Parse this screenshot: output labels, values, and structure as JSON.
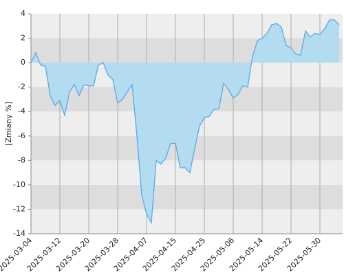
{
  "chart_data": {
    "type": "area",
    "y_label": "[Zmiany %]",
    "categories": [
      "2025-03-04",
      null,
      null,
      null,
      null,
      null,
      "2025-03-12",
      null,
      null,
      null,
      null,
      null,
      "2025-03-20",
      null,
      null,
      null,
      null,
      null,
      "2025-03-28",
      null,
      null,
      null,
      null,
      null,
      "2025-04-07",
      null,
      null,
      null,
      null,
      null,
      "2025-04-15",
      null,
      null,
      null,
      null,
      null,
      "2025-04-25",
      null,
      null,
      null,
      null,
      null,
      "2025-05-06",
      null,
      null,
      null,
      null,
      null,
      "2025-05-14",
      null,
      null,
      null,
      null,
      null,
      "2025-05-22",
      null,
      null,
      null,
      null,
      null,
      "2025-05-30",
      null,
      null,
      null,
      null
    ],
    "values": [
      0,
      0.8,
      -0.2,
      -0.3,
      -2.7,
      -3.5,
      -3.1,
      -4.3,
      -2.4,
      -1.8,
      -2.7,
      -1.8,
      -1.9,
      -1.9,
      -0.2,
      0.0,
      -1.0,
      -1.4,
      -3.3,
      -3.0,
      -2.4,
      -1.8,
      -6.0,
      -10.8,
      -12.4,
      -13.1,
      -8.0,
      -8.3,
      -7.8,
      -6.6,
      -6.6,
      -8.6,
      -8.6,
      -9.0,
      -7.0,
      -5.2,
      -4.5,
      -4.4,
      -3.8,
      -3.8,
      -1.7,
      -2.2,
      -2.9,
      -2.6,
      -1.9,
      -2.0,
      0.5,
      1.8,
      2.0,
      2.4,
      3.1,
      3.2,
      2.9,
      1.4,
      1.2,
      0.7,
      0.6,
      2.6,
      2.1,
      2.4,
      2.3,
      2.8,
      3.5,
      3.5,
      3.1
    ],
    "color": "#55aaea",
    "fill": "#b3dcf0",
    "ylim": [
      -14,
      4
    ],
    "yticks": [
      -14,
      -12,
      -10,
      -8,
      -6,
      -4,
      -2,
      0,
      2,
      4
    ],
    "band_colors": [
      "#eeeeee",
      "#dddddd"
    ]
  }
}
